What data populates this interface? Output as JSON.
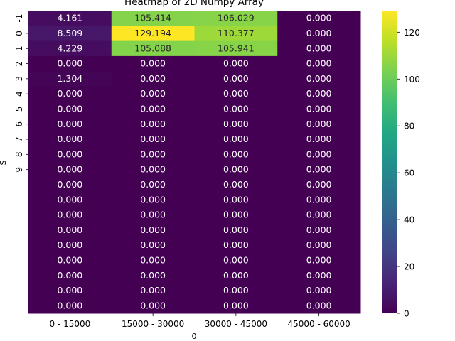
{
  "chart_data": {
    "type": "heatmap",
    "title": "Heatmap of 2D Numpy Array",
    "xlabel": "0",
    "ylabel": "S",
    "x_categories": [
      "0 - 15000",
      "15000 - 30000",
      "30000 - 45000",
      "45000 - 60000"
    ],
    "y_tick_labels": [
      "-1",
      "0",
      "1",
      "2",
      "3",
      "4",
      "5",
      "6",
      "7",
      "8",
      "9"
    ],
    "values": [
      [
        4.161,
        105.414,
        106.029,
        0.0
      ],
      [
        8.509,
        129.194,
        110.377,
        0.0
      ],
      [
        4.229,
        105.088,
        105.941,
        0.0
      ],
      [
        0.0,
        0.0,
        0.0,
        0.0
      ],
      [
        1.304,
        0.0,
        0.0,
        0.0
      ],
      [
        0.0,
        0.0,
        0.0,
        0.0
      ],
      [
        0.0,
        0.0,
        0.0,
        0.0
      ],
      [
        0.0,
        0.0,
        0.0,
        0.0
      ],
      [
        0.0,
        0.0,
        0.0,
        0.0
      ],
      [
        0.0,
        0.0,
        0.0,
        0.0
      ],
      [
        0.0,
        0.0,
        0.0,
        0.0
      ],
      [
        0.0,
        0.0,
        0.0,
        0.0
      ],
      [
        0.0,
        0.0,
        0.0,
        0.0
      ],
      [
        0.0,
        0.0,
        0.0,
        0.0
      ],
      [
        0.0,
        0.0,
        0.0,
        0.0
      ],
      [
        0.0,
        0.0,
        0.0,
        0.0
      ],
      [
        0.0,
        0.0,
        0.0,
        0.0
      ],
      [
        0.0,
        0.0,
        0.0,
        0.0
      ],
      [
        0.0,
        0.0,
        0.0,
        0.0
      ],
      [
        0.0,
        0.0,
        0.0,
        0.0
      ]
    ],
    "value_format_decimals": 3,
    "colormap": "viridis",
    "colorbar": {
      "min": 0,
      "max": 129.194,
      "ticks": [
        0,
        20,
        40,
        60,
        80,
        100,
        120
      ]
    },
    "grid": false
  }
}
